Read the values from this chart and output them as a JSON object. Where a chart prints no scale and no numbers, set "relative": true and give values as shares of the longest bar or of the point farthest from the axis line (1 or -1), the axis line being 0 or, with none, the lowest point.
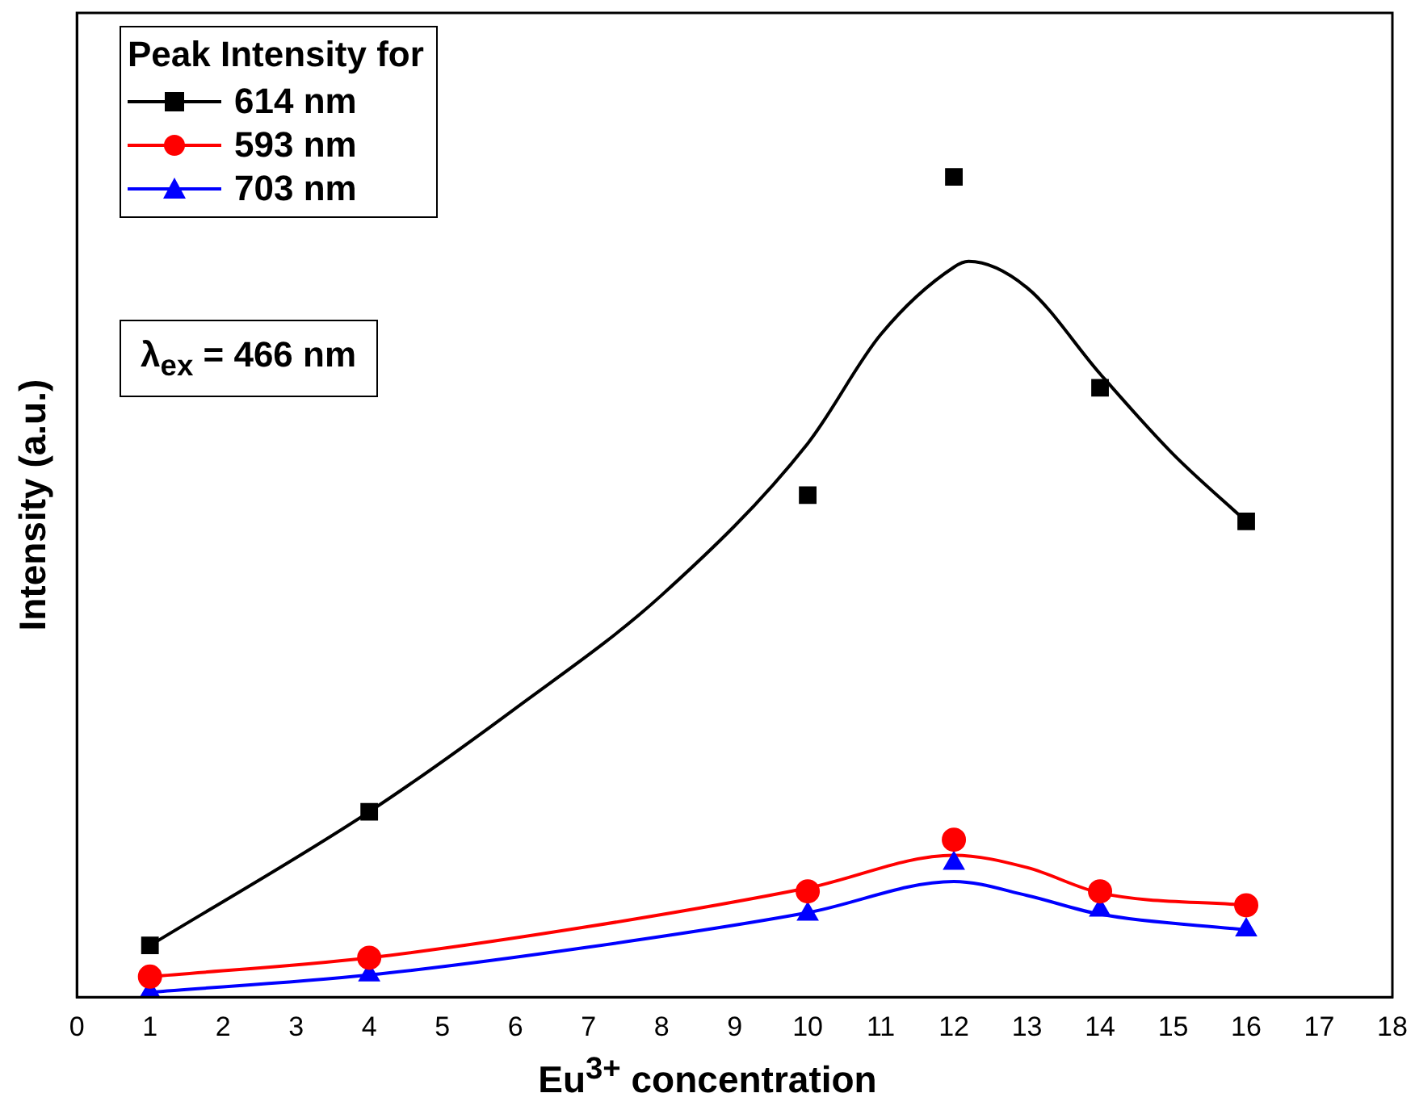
{
  "chart_data": {
    "type": "scatter",
    "relative": true,
    "xlabel": "Eu$^{3+}$ concentration",
    "ylabel": "Intensity (a.u.)",
    "legend_title": "Peak Intensity for",
    "legend": "top left",
    "grid": false,
    "annotations": [
      "λ$_{ex}$ = 466 nm"
    ],
    "xlim": [
      0,
      18
    ],
    "xticks": [
      0,
      1,
      2,
      3,
      4,
      5,
      6,
      7,
      8,
      9,
      10,
      11,
      12,
      13,
      14,
      15,
      16,
      17,
      18
    ],
    "x": [
      1,
      4,
      10,
      12,
      14,
      16
    ],
    "series": [
      {
        "name": "614 nm",
        "color": "#000000",
        "marker": "square",
        "values": [
          0.063,
          0.226,
          0.612,
          1,
          0.743,
          0.58
        ]
      },
      {
        "name": "593 nm",
        "color": "#ff0000",
        "marker": "circle",
        "values": [
          0.025,
          0.048,
          0.129,
          0.192,
          0.129,
          0.112
        ]
      },
      {
        "name": "703 nm",
        "color": "#0000ff",
        "marker": "triangle",
        "values": [
          0.006,
          0.027,
          0.101,
          0.163,
          0.106,
          0.082
        ]
      },
      {
        "type": "line",
        "color": "#000000",
        "marker": "none",
        "x": [
          1,
          4,
          6,
          8,
          10,
          11,
          12,
          12.2,
          13,
          14,
          15,
          16
        ],
        "values": [
          0.063,
          0.226,
          0.352,
          0.49,
          0.675,
          0.808,
          0.89,
          0.897,
          0.865,
          0.76,
          0.662,
          0.58
        ]
      },
      {
        "type": "line",
        "color": "#ff0000",
        "marker": "none",
        "x": [
          1,
          4,
          7,
          10,
          12,
          13,
          14,
          16
        ],
        "values": [
          0.025,
          0.048,
          0.086,
          0.133,
          0.173,
          0.158,
          0.127,
          0.112
        ]
      },
      {
        "type": "line",
        "color": "#0000ff",
        "marker": "none",
        "x": [
          1,
          4,
          7,
          10,
          12,
          13,
          14,
          16
        ],
        "values": [
          0.006,
          0.027,
          0.061,
          0.103,
          0.141,
          0.124,
          0.101,
          0.082
        ]
      }
    ]
  }
}
